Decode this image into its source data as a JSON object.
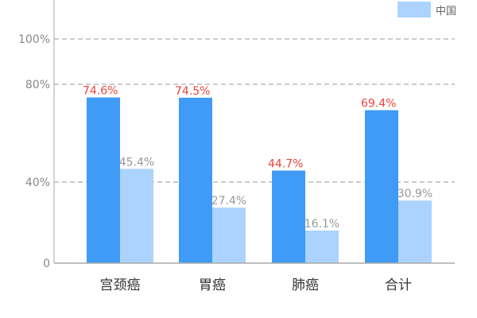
{
  "chart_data": {
    "type": "bar",
    "categories": [
      "宫颈癌",
      "胃癌",
      "肺癌",
      "合计"
    ],
    "series": [
      {
        "values": [
          74.6,
          74.5,
          44.7,
          69.4
        ],
        "labels": [
          "74.6%",
          "74.5%",
          "44.7%",
          "69.4%"
        ],
        "color": "#3f9bf5",
        "label_color": "#e8453c"
      },
      {
        "name": "中国",
        "values": [
          45.4,
          27.4,
          16.1,
          30.9
        ],
        "labels": [
          "45.4%",
          "27.4%",
          "16.1%",
          "30.9%"
        ],
        "color": "#acd3fd",
        "label_color": "#999999"
      }
    ],
    "y_ticks": [
      {
        "value": 0,
        "label": "0",
        "grid": false
      },
      {
        "value": 40,
        "label": "40%",
        "grid": true
      },
      {
        "value": 80,
        "label": "80%",
        "grid": true
      },
      {
        "value": 100,
        "label": "100%",
        "grid": true
      }
    ],
    "y_scale": "piecewise-linear",
    "ylim": [
      0,
      100
    ],
    "legend": {
      "label": "中国",
      "color": "#acd3fd",
      "position": "top-right"
    },
    "grid": "dashed-horizontal",
    "axis_color": "#aaaaaa",
    "grid_color": "#999999"
  }
}
